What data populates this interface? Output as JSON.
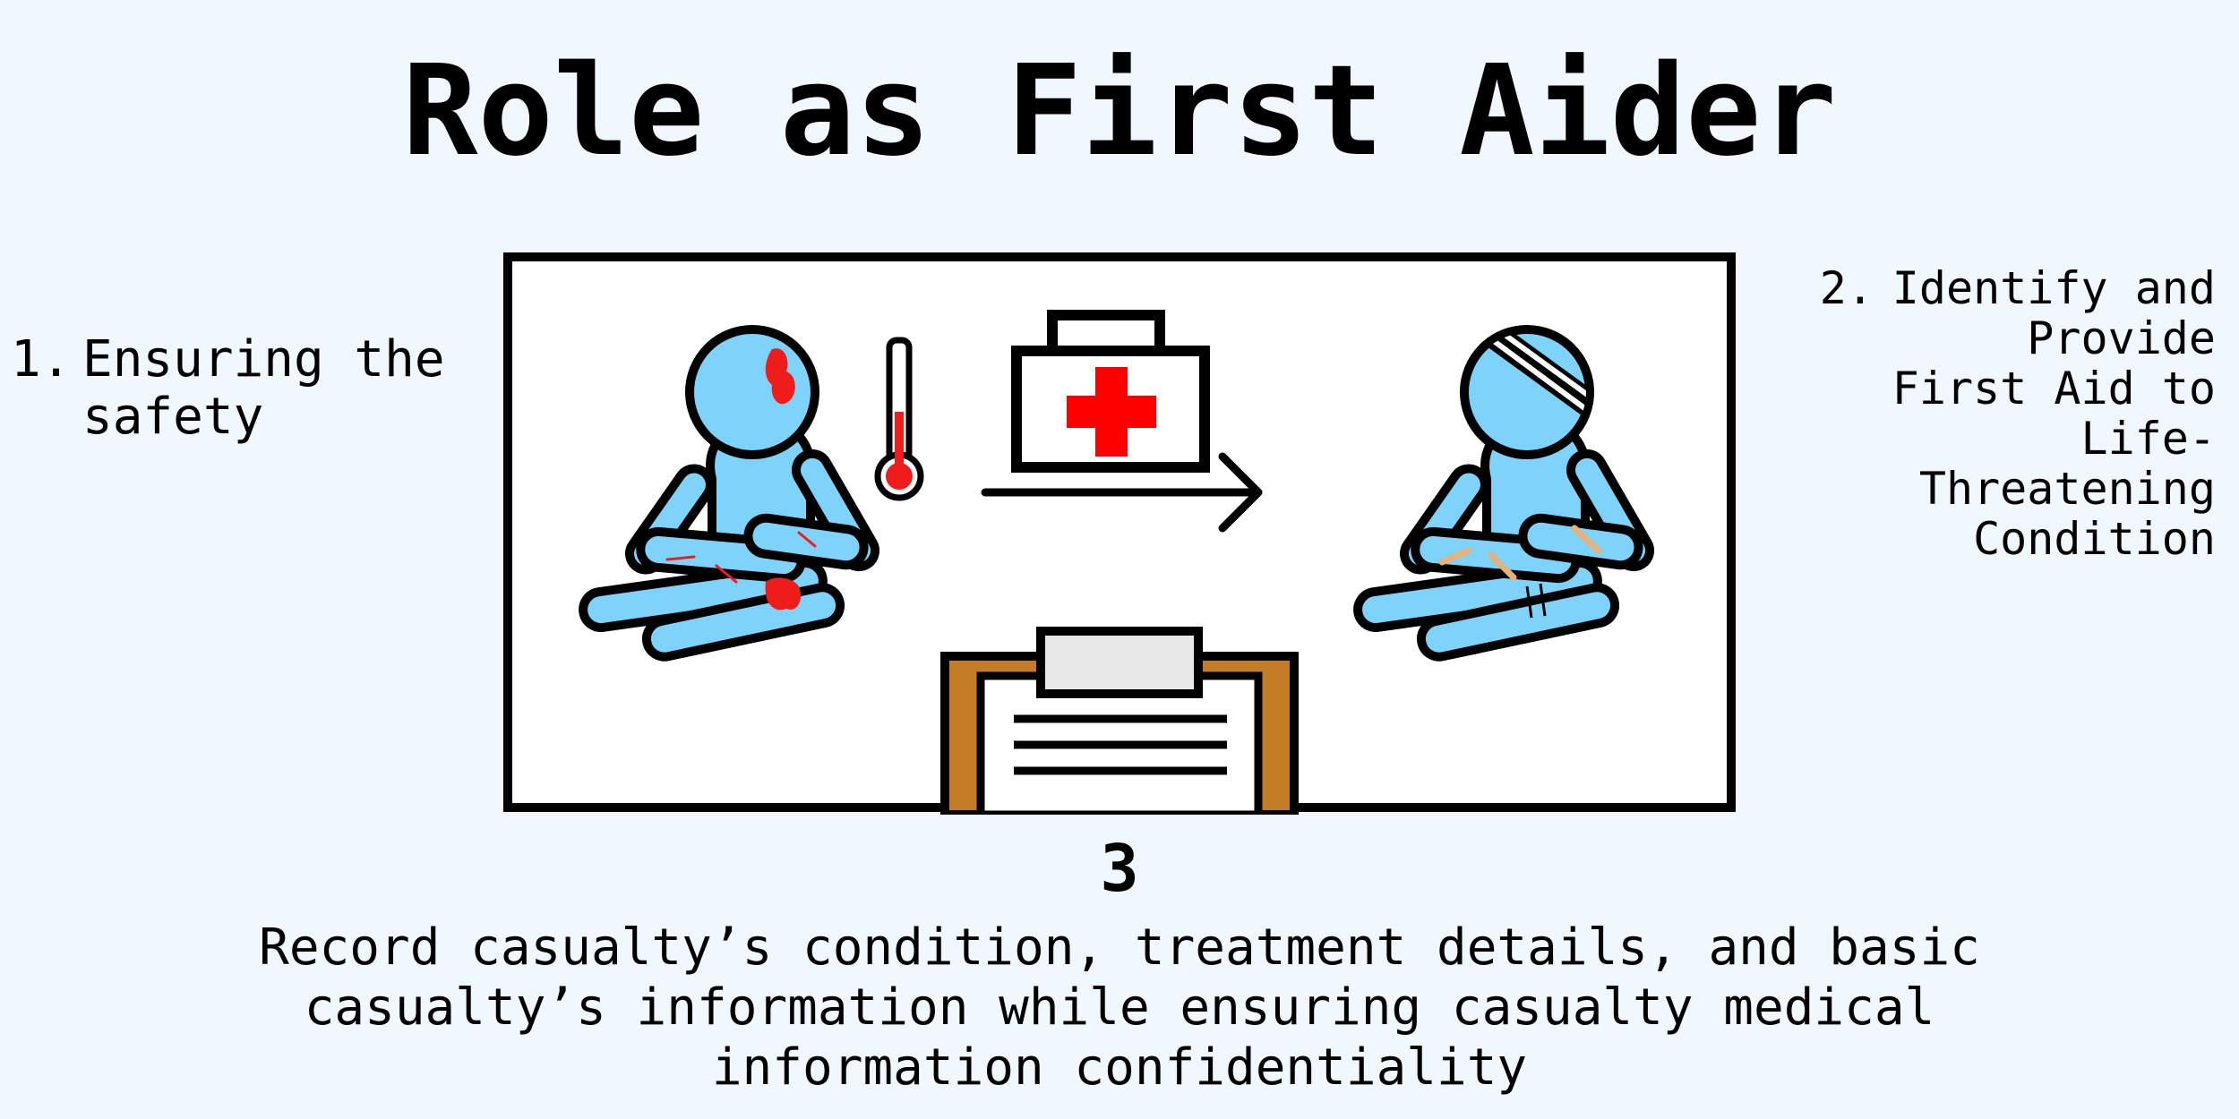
{
  "title": "Role as First Aider",
  "steps": [
    {
      "number": "1.",
      "text": "Ensuring the safety"
    },
    {
      "number": "2.",
      "text": "Identify and Provide First Aid to Life-Threatening Condition"
    },
    {
      "number": "3",
      "text": "Record casualty’s condition, treatment details, and basic casualty’s information while ensuring casualty medical information confidentiality"
    }
  ],
  "illustration": {
    "icons": [
      "injured-casualty-icon",
      "thermometer-icon",
      "first-aid-kit-icon",
      "arrow-right-icon",
      "bandaged-casualty-icon",
      "clipboard-icon"
    ],
    "colors": {
      "skin": "#7dd3fc",
      "blood": "#ef1c1c",
      "kit_cross": "#ff0000",
      "bandage": "#e8b07a",
      "clipboard": "#c47c27",
      "background": "#f0f7fe"
    }
  }
}
